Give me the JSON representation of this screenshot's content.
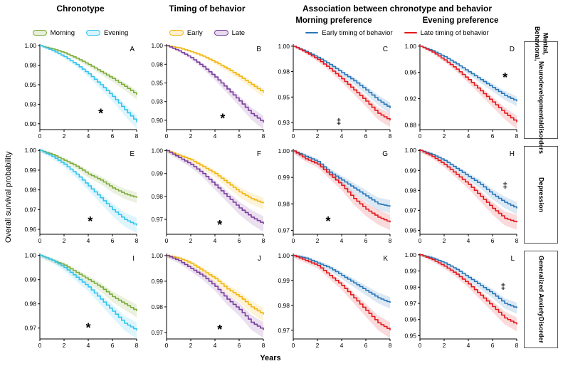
{
  "figure": {
    "titles": {
      "col1": "Chronotype",
      "col2": "Timing of behavior",
      "col34": "Association between chronotype  and behavior",
      "sub_col3": "Morning preference",
      "sub_col4": "Evening preference"
    },
    "ylabel": "Overall survival probability",
    "xlabel": "Years",
    "row_labels": [
      {
        "lines": [
          "Mental, Behavioral,",
          "Neurodevelopmental",
          "disorders"
        ]
      },
      {
        "lines": [
          "Depression"
        ]
      },
      {
        "lines": [
          "Generalized Anxiety",
          "Disorder"
        ]
      }
    ]
  },
  "legends": [
    {
      "entries": [
        {
          "label": "Morning",
          "color": "#7cab3a"
        },
        {
          "label": "Evening",
          "color": "#33c3ee"
        }
      ]
    },
    {
      "entries": [
        {
          "label": "Early",
          "color": "#f2b50d"
        },
        {
          "label": "Late",
          "color": "#7a3e9d"
        }
      ]
    },
    {
      "entries": [
        {
          "label": "Early timing of behavior",
          "color": "#2876b8"
        },
        {
          "label": "Late timing of behavior",
          "color": "#e3191c"
        }
      ]
    }
  ],
  "chart_data": [
    {
      "panel": "A",
      "type": "line",
      "row": "Mental, Behavioral, Neurodevelopmental disorders",
      "x": [
        0,
        1,
        2,
        3,
        4,
        5,
        6,
        7,
        8
      ],
      "xticks": [
        0,
        2,
        4,
        6,
        8
      ],
      "ylim": [
        0.8925,
        1.002
      ],
      "ytick_values": [
        1.0,
        0.975,
        0.95,
        0.925,
        0.9
      ],
      "ytick_labels": [
        "1.00",
        "0.98",
        "0.95",
        "0.93",
        "0.90"
      ],
      "annotation": {
        "text": "*",
        "fx": 0.63,
        "fy": 0.82
      },
      "series": [
        {
          "name": "Morning",
          "color": "#7cab3a",
          "values": [
            1.0,
            0.996,
            0.991,
            0.984,
            0.976,
            0.967,
            0.958,
            0.948,
            0.937
          ]
        },
        {
          "name": "Evening",
          "color": "#33c3ee",
          "values": [
            1.0,
            0.994,
            0.986,
            0.976,
            0.964,
            0.95,
            0.935,
            0.918,
            0.902
          ]
        }
      ]
    },
    {
      "panel": "B",
      "type": "line",
      "row": "Mental, Behavioral, Neurodevelopmental disorders",
      "x": [
        0,
        1,
        2,
        3,
        4,
        5,
        6,
        7,
        8
      ],
      "xticks": [
        0,
        2,
        4,
        6,
        8
      ],
      "ylim": [
        0.8875,
        1.002
      ],
      "ytick_values": [
        1.0,
        0.975,
        0.95,
        0.925,
        0.9
      ],
      "ytick_labels": [
        "1.00",
        "0.98",
        "0.95",
        "0.93",
        "0.90"
      ],
      "annotation": {
        "text": "*",
        "fx": 0.58,
        "fy": 0.88
      },
      "series": [
        {
          "name": "Early",
          "color": "#f2b50d",
          "values": [
            1.0,
            0.997,
            0.992,
            0.986,
            0.978,
            0.969,
            0.959,
            0.948,
            0.937
          ]
        },
        {
          "name": "Late",
          "color": "#7a3e9d",
          "values": [
            1.0,
            0.993,
            0.984,
            0.972,
            0.958,
            0.942,
            0.926,
            0.909,
            0.897
          ]
        }
      ]
    },
    {
      "panel": "C",
      "type": "line",
      "row": "Mental, Behavioral, Neurodevelopmental disorders",
      "x": [
        0,
        1,
        2,
        3,
        4,
        5,
        6,
        7,
        8
      ],
      "xticks": [
        0,
        2,
        4,
        6,
        8
      ],
      "ylim": [
        0.918,
        1.002
      ],
      "ytick_values": [
        1.0,
        0.975,
        0.95,
        0.925
      ],
      "ytick_labels": [
        "1.00",
        "0.98",
        "0.95",
        "0.93"
      ],
      "annotation": {
        "text": "‡",
        "fx": 0.47,
        "fy": 0.9
      },
      "series": [
        {
          "name": "Early timing of behavior",
          "color": "#2876b8",
          "values": [
            1.0,
            0.995,
            0.989,
            0.982,
            0.974,
            0.966,
            0.957,
            0.947,
            0.939
          ]
        },
        {
          "name": "Late timing of behavior",
          "color": "#e3191c",
          "values": [
            1.0,
            0.994,
            0.987,
            0.978,
            0.968,
            0.957,
            0.946,
            0.934,
            0.927
          ]
        }
      ]
    },
    {
      "panel": "D",
      "type": "line",
      "row": "Mental, Behavioral, Neurodevelopmental disorders",
      "x": [
        0,
        1,
        2,
        3,
        4,
        5,
        6,
        7,
        8
      ],
      "xticks": [
        0,
        2,
        4,
        6,
        8
      ],
      "ylim": [
        0.873,
        1.003
      ],
      "ytick_values": [
        1.0,
        0.96,
        0.92,
        0.88
      ],
      "ytick_labels": [
        "1.00",
        "0.96",
        "0.92",
        "0.88"
      ],
      "annotation": {
        "text": "*",
        "fx": 0.88,
        "fy": 0.4
      },
      "series": [
        {
          "name": "Early timing of behavior",
          "color": "#2876b8",
          "values": [
            1.0,
            0.993,
            0.984,
            0.973,
            0.961,
            0.949,
            0.937,
            0.925,
            0.916
          ]
        },
        {
          "name": "Late timing of behavior",
          "color": "#e3191c",
          "values": [
            1.0,
            0.991,
            0.979,
            0.965,
            0.949,
            0.932,
            0.915,
            0.898,
            0.884
          ]
        }
      ]
    },
    {
      "panel": "E",
      "type": "line",
      "row": "Depression",
      "x": [
        0,
        1,
        2,
        3,
        4,
        5,
        6,
        7,
        8
      ],
      "xticks": [
        0,
        2,
        4,
        6,
        8
      ],
      "ylim": [
        0.9575,
        1.0008
      ],
      "ytick_values": [
        1.0,
        0.99,
        0.98,
        0.97,
        0.96
      ],
      "ytick_labels": [
        "1.00",
        "0.99",
        "0.98",
        "0.97",
        "0.96"
      ],
      "annotation": {
        "text": "*",
        "fx": 0.52,
        "fy": 0.86
      },
      "series": [
        {
          "name": "Morning",
          "color": "#7cab3a",
          "values": [
            1.0,
            0.998,
            0.995,
            0.992,
            0.988,
            0.985,
            0.981,
            0.978,
            0.976
          ]
        },
        {
          "name": "Evening",
          "color": "#33c3ee",
          "values": [
            1.0,
            0.997,
            0.993,
            0.988,
            0.982,
            0.976,
            0.97,
            0.965,
            0.962
          ]
        }
      ]
    },
    {
      "panel": "F",
      "type": "line",
      "row": "Depression",
      "x": [
        0,
        1,
        2,
        3,
        4,
        5,
        6,
        7,
        8
      ],
      "xticks": [
        0,
        2,
        4,
        6,
        8
      ],
      "ylim": [
        0.9635,
        1.0008
      ],
      "ytick_values": [
        1.0,
        0.99,
        0.98,
        0.97
      ],
      "ytick_labels": [
        "1.00",
        "0.99",
        "0.98",
        "0.97"
      ],
      "annotation": {
        "text": "*",
        "fx": 0.55,
        "fy": 0.9
      },
      "series": [
        {
          "name": "Early",
          "color": "#f2b50d",
          "values": [
            1.0,
            0.998,
            0.996,
            0.993,
            0.99,
            0.986,
            0.982,
            0.979,
            0.977
          ]
        },
        {
          "name": "Late",
          "color": "#7a3e9d",
          "values": [
            1.0,
            0.997,
            0.994,
            0.99,
            0.985,
            0.98,
            0.975,
            0.971,
            0.968
          ]
        }
      ]
    },
    {
      "panel": "G",
      "type": "line",
      "row": "Depression",
      "x": [
        0,
        1,
        2,
        3,
        4,
        5,
        6,
        7,
        8
      ],
      "xticks": [
        0,
        2,
        4,
        6,
        8
      ],
      "ylim": [
        0.9685,
        1.0008
      ],
      "ytick_values": [
        1.0,
        0.99,
        0.98,
        0.97
      ],
      "ytick_labels": [
        "1.00",
        "0.99",
        "0.98",
        "0.97"
      ],
      "annotation": {
        "text": "*",
        "fx": 0.36,
        "fy": 0.86
      },
      "series": [
        {
          "name": "Early timing of behavior",
          "color": "#2876b8",
          "values": [
            1.0,
            0.998,
            0.996,
            0.992,
            0.989,
            0.986,
            0.983,
            0.98,
            0.979
          ]
        },
        {
          "name": "Late timing of behavior",
          "color": "#e3191c",
          "values": [
            1.0,
            0.997,
            0.995,
            0.991,
            0.987,
            0.982,
            0.978,
            0.975,
            0.973
          ]
        }
      ]
    },
    {
      "panel": "H",
      "type": "line",
      "row": "Depression",
      "x": [
        0,
        1,
        2,
        3,
        4,
        5,
        6,
        7,
        8
      ],
      "xticks": [
        0,
        2,
        4,
        6,
        8
      ],
      "ylim": [
        0.958,
        1.0008
      ],
      "ytick_values": [
        1.0,
        0.99,
        0.98,
        0.97,
        0.96
      ],
      "ytick_labels": [
        "1.00",
        "0.99",
        "0.98",
        "0.97",
        "0.96"
      ],
      "annotation": {
        "text": "‡",
        "fx": 0.88,
        "fy": 0.42
      },
      "series": [
        {
          "name": "Early timing of behavior",
          "color": "#2876b8",
          "values": [
            1.0,
            0.998,
            0.995,
            0.991,
            0.987,
            0.983,
            0.978,
            0.974,
            0.971
          ]
        },
        {
          "name": "Late timing of behavior",
          "color": "#e3191c",
          "values": [
            1.0,
            0.997,
            0.993,
            0.988,
            0.983,
            0.977,
            0.971,
            0.966,
            0.964
          ]
        }
      ]
    },
    {
      "panel": "I",
      "type": "line",
      "row": "Generalized Anxiety Disorder",
      "x": [
        0,
        1,
        2,
        3,
        4,
        5,
        6,
        7,
        8
      ],
      "xticks": [
        0,
        2,
        4,
        6,
        8
      ],
      "ylim": [
        0.9655,
        1.0008
      ],
      "ytick_values": [
        1.0,
        0.99,
        0.98,
        0.97
      ],
      "ytick_labels": [
        "1.00",
        "0.99",
        "0.98",
        "0.97"
      ],
      "annotation": {
        "text": "*",
        "fx": 0.5,
        "fy": 0.88
      },
      "series": [
        {
          "name": "Morning",
          "color": "#7cab3a",
          "values": [
            1.0,
            0.998,
            0.996,
            0.993,
            0.99,
            0.987,
            0.983,
            0.98,
            0.977
          ]
        },
        {
          "name": "Evening",
          "color": "#33c3ee",
          "values": [
            1.0,
            0.998,
            0.995,
            0.991,
            0.987,
            0.982,
            0.977,
            0.972,
            0.969
          ]
        }
      ]
    },
    {
      "panel": "J",
      "type": "line",
      "row": "Generalized Anxiety Disorder",
      "x": [
        0,
        1,
        2,
        3,
        4,
        5,
        6,
        7,
        8
      ],
      "xticks": [
        0,
        2,
        4,
        6,
        8
      ],
      "ylim": [
        0.9675,
        1.0008
      ],
      "ytick_values": [
        1.0,
        0.99,
        0.98,
        0.97
      ],
      "ytick_labels": [
        "1.00",
        "0.99",
        "0.98",
        "0.97"
      ],
      "annotation": {
        "text": "*",
        "fx": 0.55,
        "fy": 0.9
      },
      "series": [
        {
          "name": "Early",
          "color": "#f2b50d",
          "values": [
            1.0,
            0.999,
            0.997,
            0.994,
            0.991,
            0.987,
            0.984,
            0.98,
            0.977
          ]
        },
        {
          "name": "Late",
          "color": "#7a3e9d",
          "values": [
            1.0,
            0.998,
            0.995,
            0.992,
            0.988,
            0.983,
            0.979,
            0.974,
            0.971
          ]
        }
      ]
    },
    {
      "panel": "K",
      "type": "line",
      "row": "Generalized Anxiety Disorder",
      "x": [
        0,
        1,
        2,
        3,
        4,
        5,
        6,
        7,
        8
      ],
      "xticks": [
        0,
        2,
        4,
        6,
        8
      ],
      "ylim": [
        0.9665,
        1.0008
      ],
      "ytick_values": [
        1.0,
        0.99,
        0.98,
        0.97
      ],
      "ytick_labels": [
        "1.00",
        "0.99",
        "0.98",
        "0.97"
      ],
      "annotation": null,
      "series": [
        {
          "name": "Early timing of behavior",
          "color": "#2876b8",
          "values": [
            1.0,
            0.999,
            0.997,
            0.995,
            0.992,
            0.989,
            0.986,
            0.983,
            0.981
          ]
        },
        {
          "name": "Late timing of behavior",
          "color": "#e3191c",
          "values": [
            1.0,
            0.998,
            0.996,
            0.992,
            0.988,
            0.983,
            0.978,
            0.973,
            0.97
          ]
        }
      ]
    },
    {
      "panel": "L",
      "type": "line",
      "row": "Generalized Anxiety Disorder",
      "x": [
        0,
        1,
        2,
        3,
        4,
        5,
        6,
        7,
        8
      ],
      "xticks": [
        0,
        2,
        4,
        6,
        8
      ],
      "ylim": [
        0.948,
        1.0008
      ],
      "ytick_values": [
        1.0,
        0.99,
        0.98,
        0.97,
        0.96,
        0.95
      ],
      "ytick_labels": [
        "1.00",
        "0.99",
        "0.98",
        "0.97",
        "0.96",
        "0.95"
      ],
      "annotation": {
        "text": "‡",
        "fx": 0.86,
        "fy": 0.38
      },
      "series": [
        {
          "name": "Early timing of behavior",
          "color": "#2876b8",
          "values": [
            1.0,
            0.998,
            0.995,
            0.991,
            0.986,
            0.981,
            0.976,
            0.97,
            0.967
          ]
        },
        {
          "name": "Late timing of behavior",
          "color": "#e3191c",
          "values": [
            1.0,
            0.997,
            0.993,
            0.988,
            0.982,
            0.975,
            0.968,
            0.961,
            0.957
          ]
        }
      ]
    }
  ]
}
